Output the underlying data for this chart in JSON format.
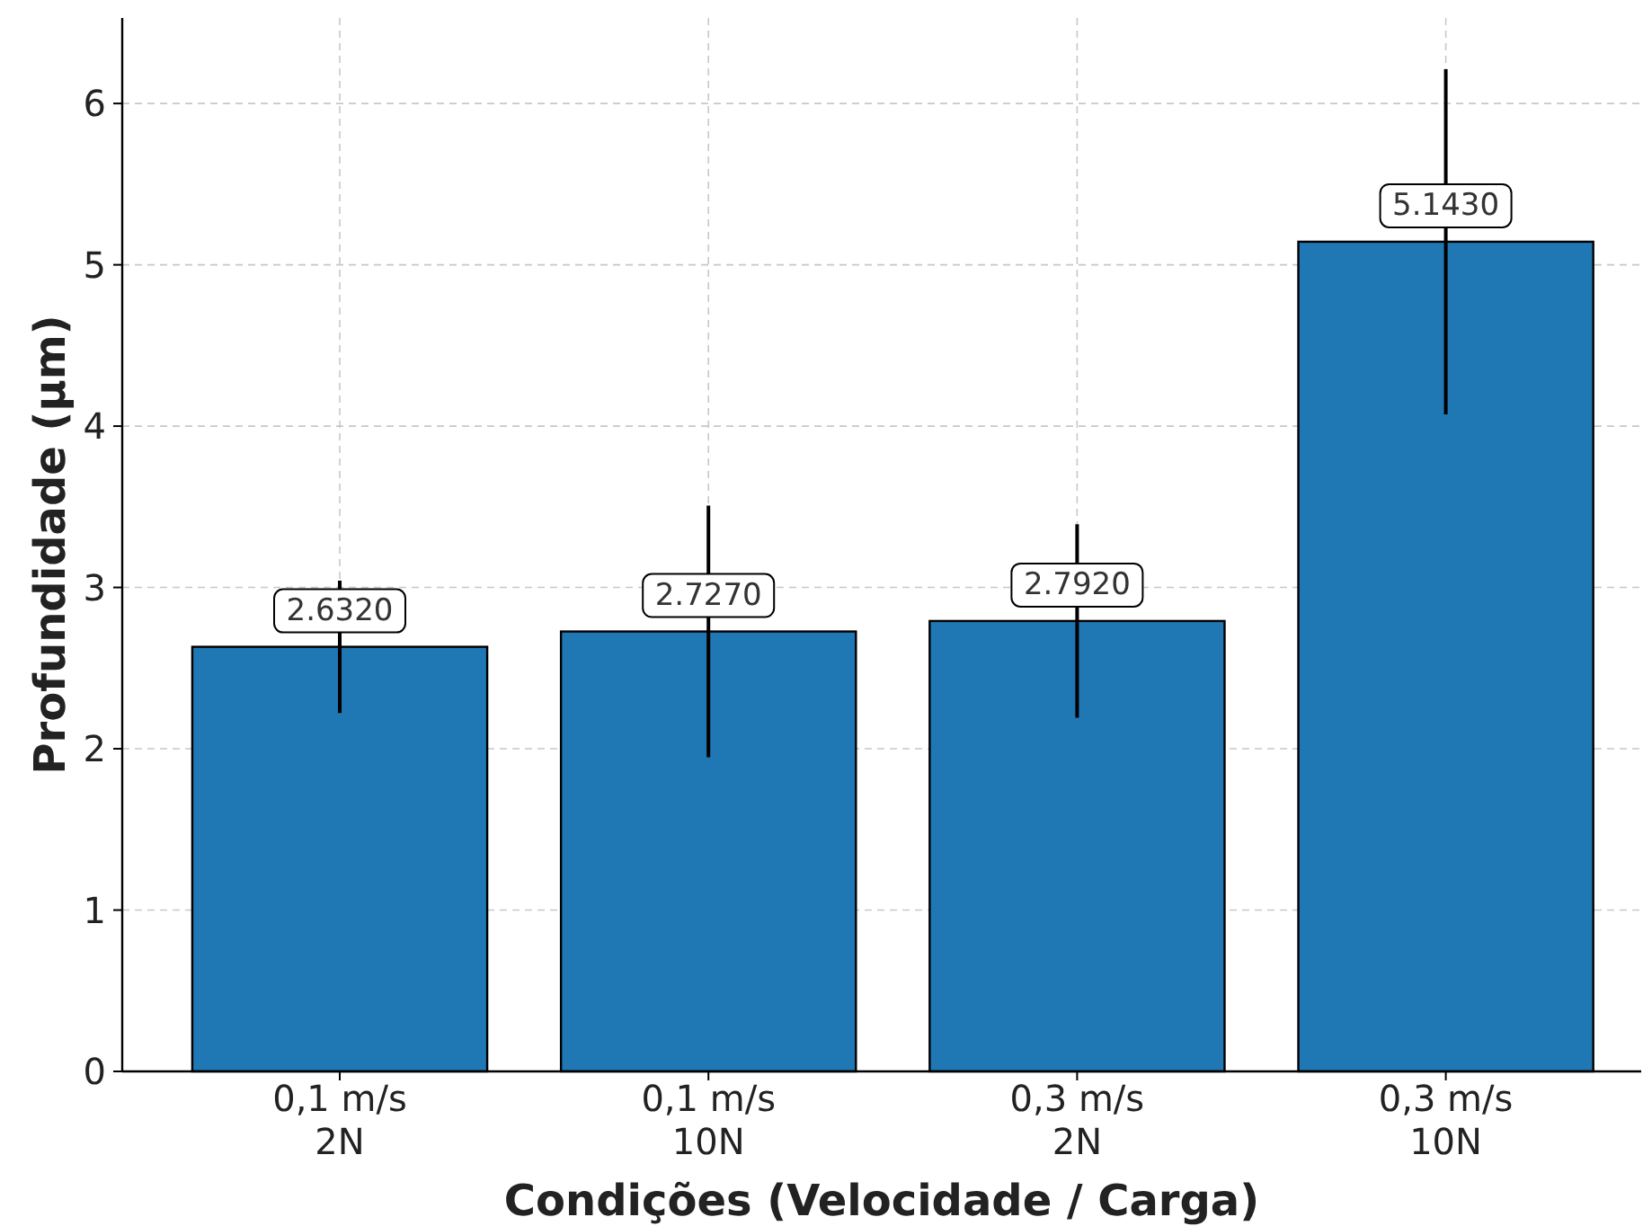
{
  "chart_data": {
    "type": "bar",
    "xlabel": "Condições (Velocidade / Carga)",
    "ylabel": "Profundidade (µm)",
    "categories": [
      "0,1 m/s\n2N",
      "0,1 m/s\n10N",
      "0,3 m/s\n2N",
      "0,3 m/s\n10N"
    ],
    "values": [
      2.632,
      2.727,
      2.792,
      5.143
    ],
    "errors": [
      0.41,
      0.78,
      0.6,
      1.07
    ],
    "value_labels": [
      "2.6320",
      "2.7270",
      "2.7920",
      "5.1430"
    ],
    "color": "#1f77b4",
    "ylim": [
      0,
      6.53
    ],
    "yticks": [
      0,
      1,
      2,
      3,
      4,
      5,
      6
    ],
    "grid": true
  }
}
